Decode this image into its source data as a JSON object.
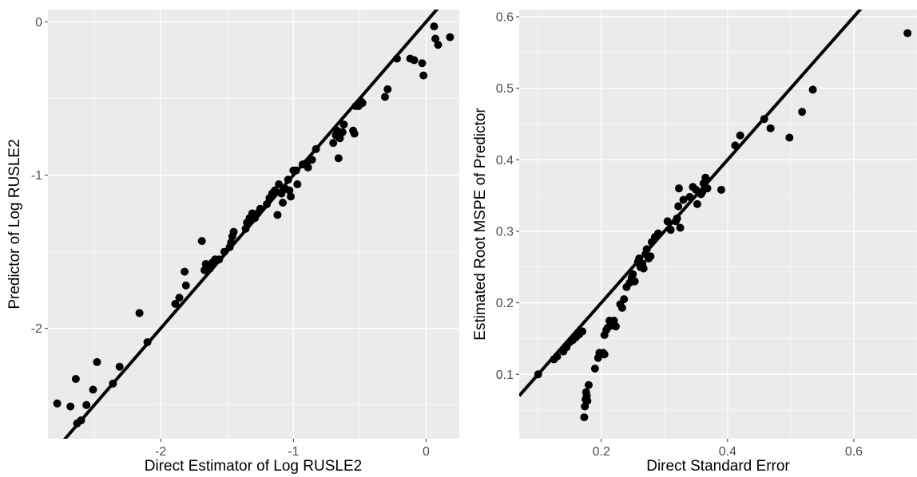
{
  "chart_data": [
    {
      "type": "scatter",
      "title": "",
      "xlabel": "Direct Estimator of Log RUSLE2",
      "ylabel": "Predictor of Log RUSLE2",
      "xlim": [
        -2.85,
        0.25
      ],
      "ylim": [
        -2.72,
        0.08
      ],
      "xticks": [
        -2,
        -1,
        0
      ],
      "yticks": [
        -2,
        -1,
        0
      ],
      "xtick_labels": [
        "-2",
        "-1",
        "0"
      ],
      "ytick_labels": [
        "-2",
        "-1",
        "0"
      ],
      "grid": true,
      "colors": {
        "panel": "#ebebeb",
        "grid": "#ffffff",
        "points": "#000000",
        "line": "#000000"
      },
      "reference_line": {
        "slope": 1,
        "intercept": 0
      },
      "points": [
        [
          -2.78,
          -2.49
        ],
        [
          -2.68,
          -2.51
        ],
        [
          -2.64,
          -2.33
        ],
        [
          -2.63,
          -2.62
        ],
        [
          -2.6,
          -2.6
        ],
        [
          -2.56,
          -2.5
        ],
        [
          -2.51,
          -2.4
        ],
        [
          -2.48,
          -2.22
        ],
        [
          -2.36,
          -2.36
        ],
        [
          -2.31,
          -2.25
        ],
        [
          -2.16,
          -1.9
        ],
        [
          -2.1,
          -2.09
        ],
        [
          -1.89,
          -1.84
        ],
        [
          -1.86,
          -1.8
        ],
        [
          -1.82,
          -1.63
        ],
        [
          -1.81,
          -1.72
        ],
        [
          -1.69,
          -1.43
        ],
        [
          -1.67,
          -1.62
        ],
        [
          -1.66,
          -1.58
        ],
        [
          -1.63,
          -1.61
        ],
        [
          -1.61,
          -1.57
        ],
        [
          -1.59,
          -1.55
        ],
        [
          -1.56,
          -1.55
        ],
        [
          -1.52,
          -1.5
        ],
        [
          -1.48,
          -1.47
        ],
        [
          -1.47,
          -1.44
        ],
        [
          -1.46,
          -1.4
        ],
        [
          -1.45,
          -1.37
        ],
        [
          -1.36,
          -1.35
        ],
        [
          -1.35,
          -1.31
        ],
        [
          -1.33,
          -1.28
        ],
        [
          -1.31,
          -1.25
        ],
        [
          -1.29,
          -1.28
        ],
        [
          -1.27,
          -1.25
        ],
        [
          -1.25,
          -1.22
        ],
        [
          -1.2,
          -1.19
        ],
        [
          -1.18,
          -1.15
        ],
        [
          -1.16,
          -1.12
        ],
        [
          -1.14,
          -1.1
        ],
        [
          -1.12,
          -1.26
        ],
        [
          -1.11,
          -1.06
        ],
        [
          -1.09,
          -1.12
        ],
        [
          -1.08,
          -1.18
        ],
        [
          -1.06,
          -1.09
        ],
        [
          -1.04,
          -1.03
        ],
        [
          -1.03,
          -1.1
        ],
        [
          -1.02,
          -1.14
        ],
        [
          -1.0,
          -0.97
        ],
        [
          -0.98,
          -0.97
        ],
        [
          -0.97,
          -1.06
        ],
        [
          -0.93,
          -0.93
        ],
        [
          -0.9,
          -0.92
        ],
        [
          -0.89,
          -0.95
        ],
        [
          -0.86,
          -0.9
        ],
        [
          -0.83,
          -0.83
        ],
        [
          -0.7,
          -0.79
        ],
        [
          -0.68,
          -0.74
        ],
        [
          -0.67,
          -0.71
        ],
        [
          -0.66,
          -0.89
        ],
        [
          -0.65,
          -0.76
        ],
        [
          -0.63,
          -0.72
        ],
        [
          -0.62,
          -0.67
        ],
        [
          -0.55,
          -0.71
        ],
        [
          -0.54,
          -0.73
        ],
        [
          -0.53,
          -0.55
        ],
        [
          -0.51,
          -0.55
        ],
        [
          -0.49,
          -0.52
        ],
        [
          -0.48,
          -0.53
        ],
        [
          -0.31,
          -0.49
        ],
        [
          -0.29,
          -0.44
        ],
        [
          -0.22,
          -0.24
        ],
        [
          -0.12,
          -0.24
        ],
        [
          -0.09,
          -0.25
        ],
        [
          -0.03,
          -0.27
        ],
        [
          -0.02,
          -0.35
        ],
        [
          0.06,
          -0.03
        ],
        [
          0.07,
          -0.11
        ],
        [
          0.09,
          -0.15
        ],
        [
          0.18,
          -0.1
        ]
      ]
    },
    {
      "type": "scatter",
      "title": "",
      "xlabel": "Direct Standard Error",
      "ylabel": "Estimated Root MSPE of Predictor",
      "xlim": [
        0.07,
        0.7
      ],
      "ylim": [
        0.01,
        0.61
      ],
      "xticks": [
        0.2,
        0.4,
        0.6
      ],
      "yticks": [
        0.1,
        0.2,
        0.3,
        0.4,
        0.5,
        0.6
      ],
      "xtick_labels": [
        "0.2",
        "0.4",
        "0.6"
      ],
      "ytick_labels": [
        "0.1",
        "0.2",
        "0.3",
        "0.4",
        "0.5",
        "0.6"
      ],
      "grid": true,
      "colors": {
        "panel": "#ebebeb",
        "grid": "#ffffff",
        "points": "#000000",
        "line": "#000000"
      },
      "reference_line": {
        "slope": 1,
        "intercept": 0
      },
      "points": [
        [
          0.1,
          0.1
        ],
        [
          0.125,
          0.121
        ],
        [
          0.13,
          0.125
        ],
        [
          0.14,
          0.132
        ],
        [
          0.145,
          0.138
        ],
        [
          0.15,
          0.145
        ],
        [
          0.155,
          0.148
        ],
        [
          0.16,
          0.152
        ],
        [
          0.165,
          0.156
        ],
        [
          0.17,
          0.16
        ],
        [
          0.173,
          0.04
        ],
        [
          0.174,
          0.055
        ],
        [
          0.175,
          0.065
        ],
        [
          0.176,
          0.075
        ],
        [
          0.177,
          0.07
        ],
        [
          0.178,
          0.063
        ],
        [
          0.18,
          0.085
        ],
        [
          0.19,
          0.108
        ],
        [
          0.195,
          0.123
        ],
        [
          0.197,
          0.13
        ],
        [
          0.203,
          0.13
        ],
        [
          0.205,
          0.128
        ],
        [
          0.205,
          0.155
        ],
        [
          0.208,
          0.162
        ],
        [
          0.21,
          0.165
        ],
        [
          0.213,
          0.175
        ],
        [
          0.215,
          0.168
        ],
        [
          0.218,
          0.172
        ],
        [
          0.22,
          0.175
        ],
        [
          0.223,
          0.167
        ],
        [
          0.23,
          0.198
        ],
        [
          0.233,
          0.193
        ],
        [
          0.236,
          0.205
        ],
        [
          0.24,
          0.222
        ],
        [
          0.245,
          0.228
        ],
        [
          0.248,
          0.235
        ],
        [
          0.25,
          0.24
        ],
        [
          0.253,
          0.23
        ],
        [
          0.258,
          0.257
        ],
        [
          0.26,
          0.262
        ],
        [
          0.262,
          0.25
        ],
        [
          0.265,
          0.255
        ],
        [
          0.267,
          0.248
        ],
        [
          0.27,
          0.268
        ],
        [
          0.272,
          0.275
        ],
        [
          0.275,
          0.262
        ],
        [
          0.278,
          0.265
        ],
        [
          0.28,
          0.285
        ],
        [
          0.285,
          0.292
        ],
        [
          0.29,
          0.297
        ],
        [
          0.305,
          0.314
        ],
        [
          0.31,
          0.302
        ],
        [
          0.318,
          0.314
        ],
        [
          0.32,
          0.318
        ],
        [
          0.322,
          0.335
        ],
        [
          0.323,
          0.36
        ],
        [
          0.325,
          0.305
        ],
        [
          0.33,
          0.344
        ],
        [
          0.34,
          0.348
        ],
        [
          0.345,
          0.362
        ],
        [
          0.35,
          0.358
        ],
        [
          0.352,
          0.338
        ],
        [
          0.358,
          0.352
        ],
        [
          0.36,
          0.355
        ],
        [
          0.362,
          0.367
        ],
        [
          0.365,
          0.375
        ],
        [
          0.368,
          0.36
        ],
        [
          0.39,
          0.358
        ],
        [
          0.412,
          0.42
        ],
        [
          0.42,
          0.434
        ],
        [
          0.458,
          0.457
        ],
        [
          0.468,
          0.444
        ],
        [
          0.498,
          0.431
        ],
        [
          0.518,
          0.467
        ],
        [
          0.535,
          0.498
        ],
        [
          0.685,
          0.577
        ]
      ]
    }
  ]
}
